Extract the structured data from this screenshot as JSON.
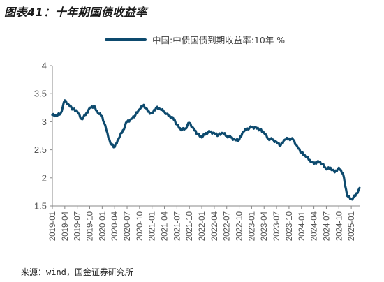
{
  "figure": {
    "title": "图表41：十年期国债收益率",
    "source": "来源：wind，国金证券研究所"
  },
  "chart_data": {
    "type": "line",
    "title": "图表41：十年期国债收益率",
    "xlabel": "",
    "ylabel": "",
    "ylim": [
      1.5,
      4
    ],
    "yticks": [
      "4",
      "3.5",
      "3",
      "2.5",
      "2",
      "1.5"
    ],
    "xlim": [
      "2019-01",
      "2025-03"
    ],
    "xticks": [
      "2019-01",
      "2019-04",
      "2019-07",
      "2019-10",
      "2020-01",
      "2020-04",
      "2020-07",
      "2020-10",
      "2021-01",
      "2021-04",
      "2021-07",
      "2021-10",
      "2022-01",
      "2022-04",
      "2022-07",
      "2022-10",
      "2023-01",
      "2023-04",
      "2023-07",
      "2023-10",
      "2024-01",
      "2024-04",
      "2024-07",
      "2024-10",
      "2025-01"
    ],
    "legend": {
      "position": "top-right",
      "entries": [
        "中国:中债国债到期收益率:10年 %"
      ]
    },
    "grid": false,
    "series": [
      {
        "name": "中国:中债国债到期收益率:10年 %",
        "color": "#0d4a6e",
        "x": [
          "2019-01",
          "2019-02",
          "2019-03",
          "2019-04",
          "2019-05",
          "2019-06",
          "2019-07",
          "2019-08",
          "2019-09",
          "2019-10",
          "2019-11",
          "2019-12",
          "2020-01",
          "2020-02",
          "2020-03",
          "2020-04",
          "2020-05",
          "2020-06",
          "2020-07",
          "2020-08",
          "2020-09",
          "2020-10",
          "2020-11",
          "2020-12",
          "2021-01",
          "2021-02",
          "2021-03",
          "2021-04",
          "2021-05",
          "2021-06",
          "2021-07",
          "2021-08",
          "2021-09",
          "2021-10",
          "2021-11",
          "2021-12",
          "2022-01",
          "2022-02",
          "2022-03",
          "2022-04",
          "2022-05",
          "2022-06",
          "2022-07",
          "2022-08",
          "2022-09",
          "2022-10",
          "2022-11",
          "2022-12",
          "2023-01",
          "2023-02",
          "2023-03",
          "2023-04",
          "2023-05",
          "2023-06",
          "2023-07",
          "2023-08",
          "2023-09",
          "2023-10",
          "2023-11",
          "2023-12",
          "2024-01",
          "2024-02",
          "2024-03",
          "2024-04",
          "2024-05",
          "2024-06",
          "2024-07",
          "2024-08",
          "2024-09",
          "2024-10",
          "2024-11",
          "2024-12",
          "2025-01",
          "2025-02",
          "2025-03"
        ],
        "values": [
          3.12,
          3.1,
          3.15,
          3.38,
          3.3,
          3.22,
          3.18,
          3.05,
          3.12,
          3.25,
          3.28,
          3.15,
          3.1,
          2.85,
          2.62,
          2.55,
          2.7,
          2.85,
          3.0,
          3.05,
          3.12,
          3.22,
          3.3,
          3.18,
          3.15,
          3.25,
          3.22,
          3.18,
          3.1,
          3.08,
          2.95,
          2.85,
          2.88,
          2.98,
          2.88,
          2.78,
          2.72,
          2.8,
          2.82,
          2.8,
          2.76,
          2.8,
          2.75,
          2.72,
          2.68,
          2.68,
          2.82,
          2.88,
          2.9,
          2.9,
          2.86,
          2.8,
          2.7,
          2.68,
          2.64,
          2.58,
          2.68,
          2.7,
          2.68,
          2.56,
          2.45,
          2.38,
          2.32,
          2.25,
          2.3,
          2.25,
          2.15,
          2.18,
          2.1,
          2.18,
          2.08,
          1.68,
          1.62,
          1.68,
          1.82
        ]
      }
    ]
  }
}
